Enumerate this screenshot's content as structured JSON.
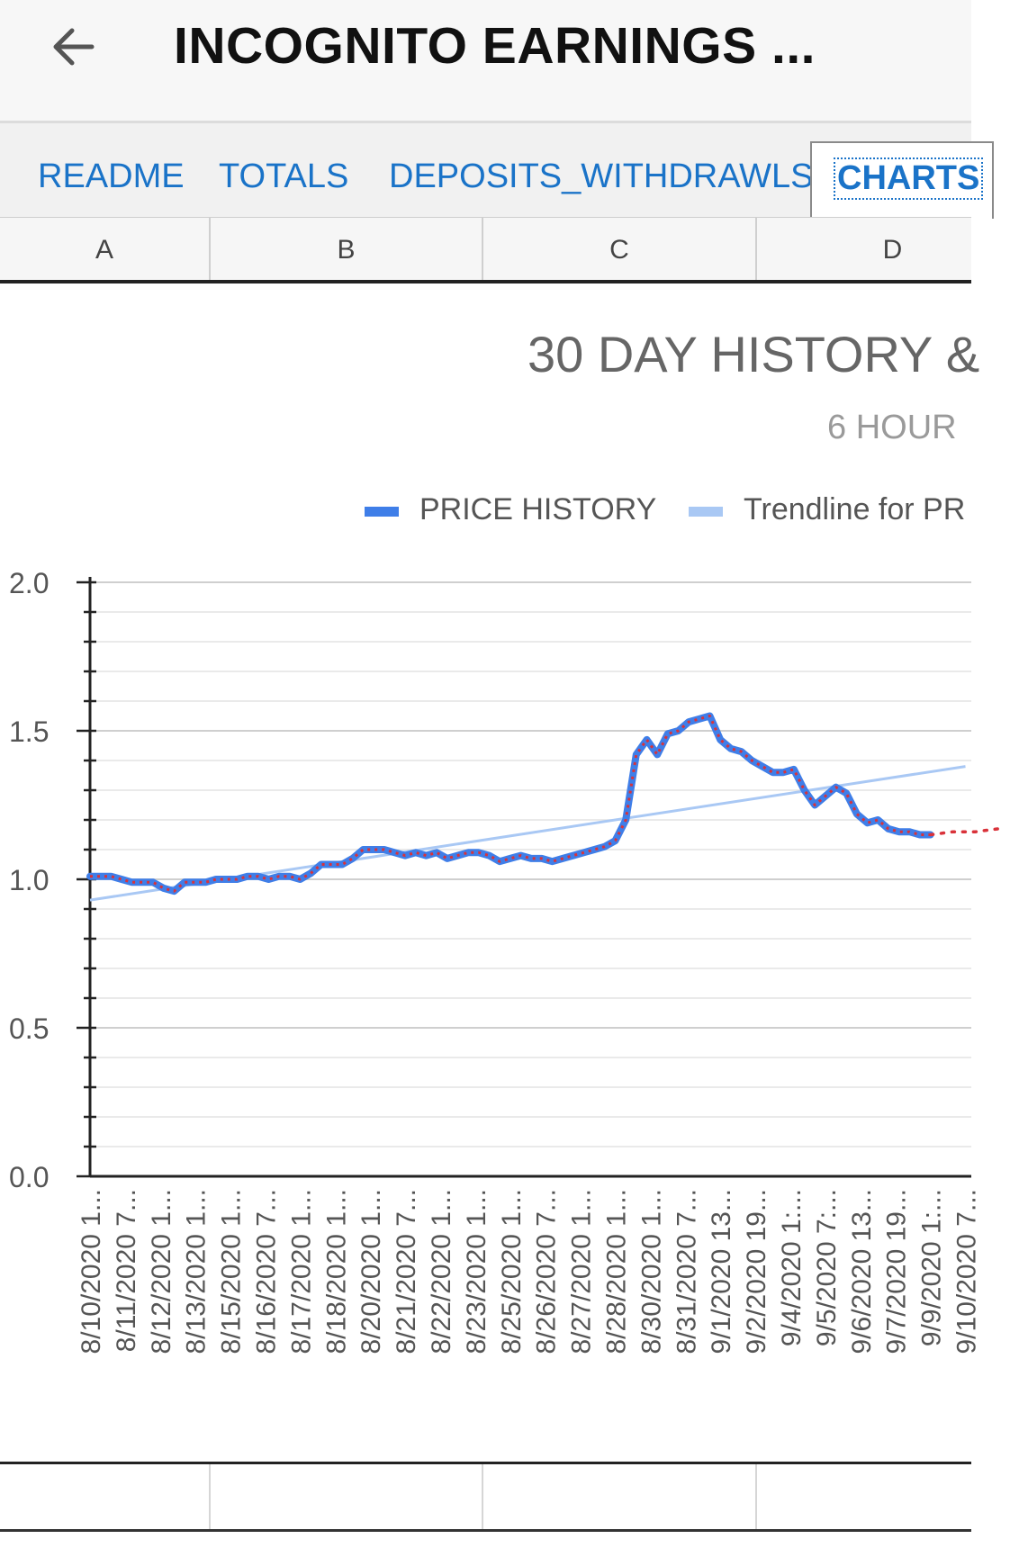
{
  "app": {
    "title": "INCOGNITO EARNINGS ...",
    "tabs": [
      {
        "label": "README"
      },
      {
        "label": "TOTALS"
      },
      {
        "label": "DEPOSITS_WITHDRAWLS"
      },
      {
        "label": "CHARTS"
      }
    ],
    "columns": [
      "A",
      "B",
      "C",
      "D"
    ]
  },
  "colors": {
    "accent": "#1a73c8",
    "series": "#3f7ee8",
    "trend": "#a9c8f4",
    "dots": "#d9323a"
  },
  "chart_data": {
    "type": "line",
    "title": "30 DAY HISTORY &",
    "subtitle": "6 HOUR",
    "legend_position": "top",
    "legend": [
      {
        "name": "PRICE HISTORY",
        "color": "#3f7ee8"
      },
      {
        "name": "Trendline for PR",
        "color": "#a9c8f4"
      }
    ],
    "grid": true,
    "ylim": [
      0,
      2
    ],
    "yticks": [
      "0.0",
      "0.5",
      "1.0",
      "1.5",
      "2.0"
    ],
    "x_labels": [
      "8/10/2020 1...",
      "8/11/2020 7...",
      "8/12/2020 1...",
      "8/13/2020 1...",
      "8/15/2020 1...",
      "8/16/2020 7...",
      "8/17/2020 1...",
      "8/18/2020 1...",
      "8/20/2020 1...",
      "8/21/2020 7...",
      "8/22/2020 1...",
      "8/23/2020 1...",
      "8/25/2020 1...",
      "8/26/2020 7...",
      "8/27/2020 1...",
      "8/28/2020 1...",
      "8/30/2020 1...",
      "8/31/2020 7...",
      "9/1/2020 13...",
      "9/2/2020 19...",
      "9/4/2020 1:...",
      "9/5/2020 7:...",
      "9/6/2020 13...",
      "9/7/2020 19...",
      "9/9/2020 1:...",
      "9/10/2020 7..."
    ],
    "series": [
      {
        "name": "PRICE HISTORY",
        "values": [
          1.01,
          1.01,
          1.01,
          1.0,
          0.99,
          0.99,
          0.99,
          0.97,
          0.96,
          0.99,
          0.99,
          0.99,
          1.0,
          1.0,
          1.0,
          1.01,
          1.01,
          1.0,
          1.01,
          1.01,
          1.0,
          1.02,
          1.05,
          1.05,
          1.05,
          1.07,
          1.1,
          1.1,
          1.1,
          1.09,
          1.08,
          1.09,
          1.08,
          1.09,
          1.07,
          1.08,
          1.09,
          1.09,
          1.08,
          1.06,
          1.07,
          1.08,
          1.07,
          1.07,
          1.06,
          1.07,
          1.08,
          1.09,
          1.1,
          1.11,
          1.13,
          1.2,
          1.42,
          1.47,
          1.42,
          1.49,
          1.5,
          1.53,
          1.54,
          1.55,
          1.47,
          1.44,
          1.43,
          1.4,
          1.38,
          1.36,
          1.36,
          1.37,
          1.3,
          1.25,
          1.28,
          1.31,
          1.29,
          1.22,
          1.19,
          1.2,
          1.17,
          1.16,
          1.16,
          1.15,
          1.15
        ]
      }
    ],
    "trendline": {
      "name": "Trendline for PR",
      "start": 0.93,
      "end_at_last_label": 1.38
    },
    "forecast_dotted": [
      1.15,
      1.16,
      1.16,
      1.17
    ]
  }
}
